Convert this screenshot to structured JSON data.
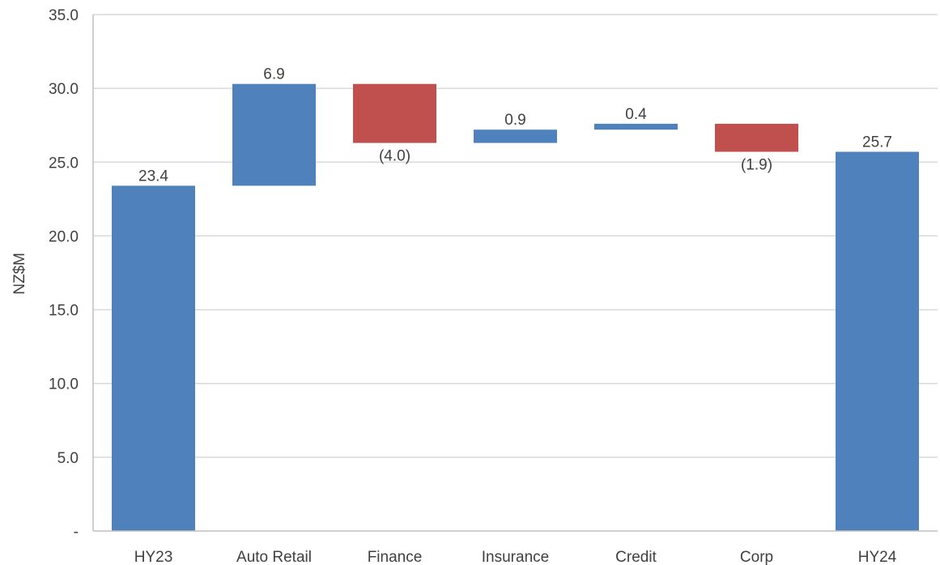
{
  "chart_data": {
    "type": "bar",
    "subtype": "waterfall",
    "title": "",
    "xlabel": "",
    "ylabel": "NZ$M",
    "ylim": [
      0,
      35
    ],
    "ytick_step": 5,
    "ytick_labels": [
      "-",
      "5.0",
      "10.0",
      "15.0",
      "20.0",
      "25.0",
      "30.0",
      "35.0"
    ],
    "grid": true,
    "categories": [
      "HY23",
      "Auto Retail",
      "Finance",
      "Insurance",
      "Credit",
      "Corp",
      "HY24"
    ],
    "values": [
      23.4,
      6.9,
      -4.0,
      0.9,
      0.4,
      -1.9,
      25.7
    ],
    "kinds": [
      "total",
      "delta",
      "delta",
      "delta",
      "delta",
      "delta",
      "total"
    ],
    "data_labels": [
      "23.4",
      "6.9",
      "(4.0)",
      "0.9",
      "0.4",
      "(1.9)",
      "25.7"
    ],
    "colors": {
      "increase": "#4f81bd",
      "decrease": "#c0504d",
      "total": "#4f81bd",
      "grid": "#d9d9d9",
      "axis": "#bfbfbf",
      "text": "#404040"
    }
  }
}
